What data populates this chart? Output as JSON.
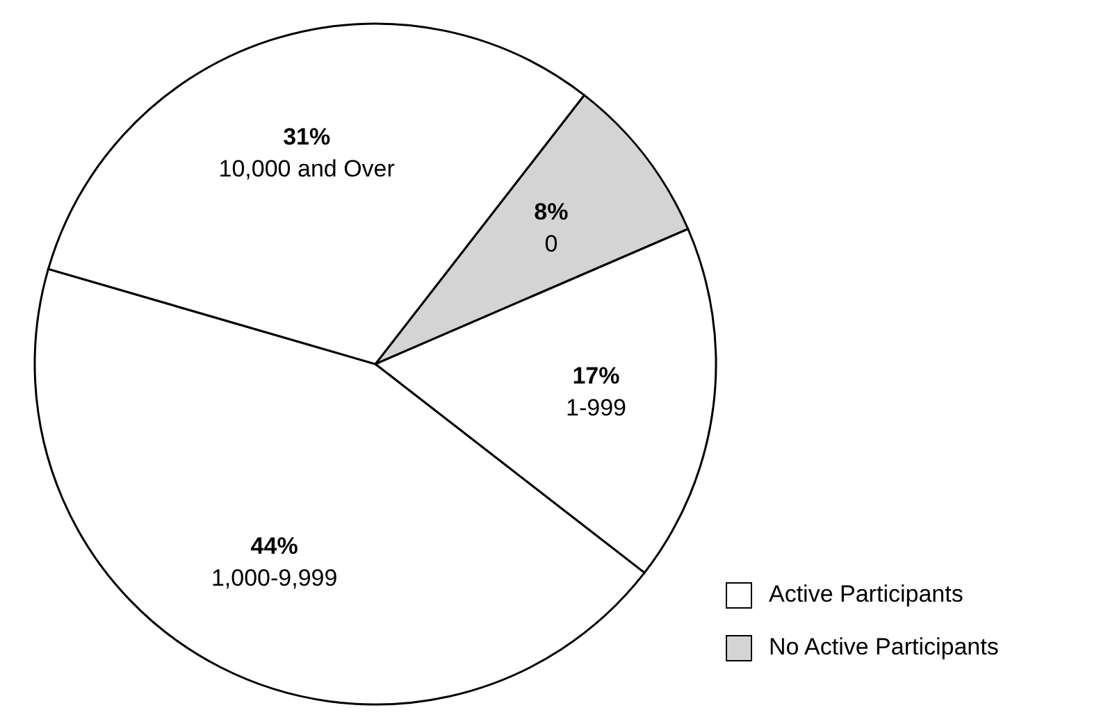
{
  "chart_data": {
    "type": "pie",
    "categories": [
      "0",
      "1-999",
      "1,000-9,999",
      "10,000 and Over"
    ],
    "values": [
      8,
      17,
      44,
      31
    ],
    "colors": [
      "#d4d4d4",
      "#ffffff",
      "#ffffff",
      "#ffffff"
    ],
    "value_labels": [
      "8%",
      "17%",
      "44%",
      "31%"
    ],
    "annotations": [
      "Active Participants",
      "No Active Participants"
    ]
  }
}
